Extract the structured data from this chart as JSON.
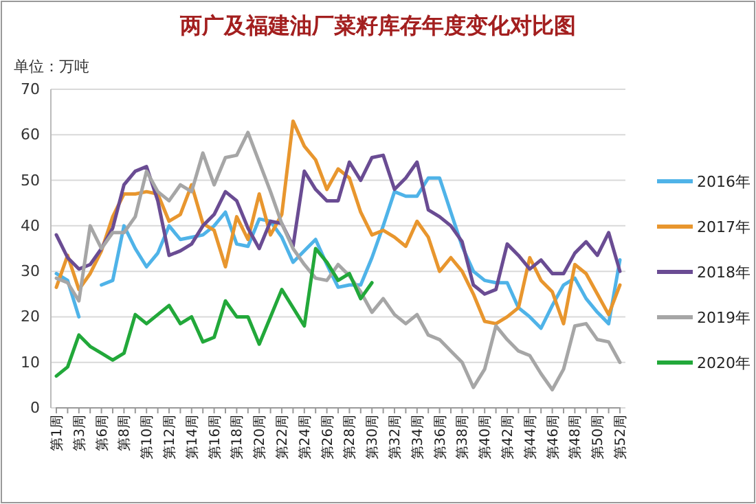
{
  "chart_data": {
    "type": "line",
    "title": "两广及福建油厂菜籽库存年度变化对比图",
    "ylabel": "单位：万吨",
    "categories": [
      "第1周",
      null,
      "第3周",
      null,
      "第6周",
      null,
      "第8周",
      null,
      "第10周",
      null,
      "第12周",
      null,
      "第14周",
      null,
      "第16周",
      null,
      "第18周",
      null,
      "第20周",
      null,
      "第22周",
      null,
      "第24周",
      null,
      "第26周",
      null,
      "第28周",
      null,
      "第30周",
      null,
      "第32周",
      null,
      "第34周",
      null,
      "第36周",
      null,
      "第38周",
      null,
      "第40周",
      null,
      "第42周",
      null,
      "第44周",
      null,
      "第46周",
      null,
      "第48周",
      null,
      "第50周",
      null,
      "第52周"
    ],
    "series": [
      {
        "name": "2016年",
        "color": "#4fb3e8",
        "values": [
          29.5,
          28,
          20,
          null,
          27,
          28,
          40,
          35,
          31,
          34,
          40,
          37,
          37.5,
          38,
          40,
          43,
          36,
          35.5,
          41.5,
          41,
          37.5,
          32,
          34.5,
          37,
          31.5,
          26.5,
          27,
          27,
          33,
          40,
          47.5,
          46.5,
          46.5,
          50.5,
          50.5,
          43,
          35.5,
          30,
          28,
          27.5,
          27.5,
          22,
          20,
          17.5,
          22.5,
          27,
          28.5,
          24,
          21,
          18.5,
          32.5
        ]
      },
      {
        "name": "2017年",
        "color": "#e8962e",
        "values": [
          26.5,
          33.5,
          26,
          29.5,
          34.5,
          42,
          47,
          47,
          47.5,
          47,
          41,
          42.5,
          49,
          40.5,
          39,
          31,
          42,
          37,
          47,
          38,
          42.5,
          63,
          57.5,
          54.5,
          48,
          52.5,
          50.5,
          43,
          38,
          39,
          37.5,
          35.5,
          41,
          37.5,
          30,
          33,
          30,
          25,
          19,
          18.5,
          20,
          22,
          33,
          28,
          25.5,
          18.5,
          31.5,
          29.5,
          25,
          20.5,
          27
        ]
      },
      {
        "name": "2018年",
        "color": "#6a4c93",
        "values": [
          38,
          33,
          30.5,
          31.5,
          35,
          39.5,
          49,
          52,
          53,
          45.5,
          33.5,
          34.5,
          36,
          40,
          42.5,
          47.5,
          45.5,
          39.5,
          35,
          41,
          40.5,
          35.5,
          52,
          48,
          45.5,
          45.5,
          54,
          50,
          55,
          55.5,
          48,
          50.5,
          54,
          43.5,
          42,
          40,
          36.5,
          27,
          25,
          26,
          36,
          33.5,
          30.5,
          32.5,
          29.5,
          29.5,
          34,
          36.5,
          33.5,
          38.5,
          30
        ]
      },
      {
        "name": "2019年",
        "color": "#a6a6a6",
        "values": [
          28.5,
          27.5,
          23.5,
          40,
          35,
          38.5,
          38.5,
          42,
          52,
          47.5,
          45.5,
          49,
          47.5,
          56,
          49,
          55,
          55.5,
          60.5,
          54,
          47.5,
          40.5,
          35,
          31.5,
          28.5,
          28,
          31.5,
          29,
          25.5,
          21,
          24,
          20.5,
          18.5,
          20.5,
          16,
          15,
          12.5,
          10,
          4.5,
          8.5,
          18,
          15,
          12.5,
          11.5,
          7.5,
          4,
          8.5,
          18,
          18.5,
          15,
          14.5,
          10
        ]
      },
      {
        "name": "2020年",
        "color": "#22a83a",
        "values": [
          7,
          9,
          16,
          13.5,
          12,
          10.5,
          12,
          20.5,
          18.5,
          20.5,
          22.5,
          18.5,
          20,
          14.5,
          15.5,
          23.5,
          20,
          20,
          14,
          20,
          26,
          22,
          18,
          35,
          32,
          28,
          29.5,
          24,
          27.5,
          null,
          null,
          null,
          null,
          null,
          null,
          null,
          null,
          null,
          null,
          null,
          null,
          null,
          null,
          null,
          null,
          null,
          null,
          null,
          null,
          null,
          null
        ]
      }
    ],
    "ylim": [
      0,
      70
    ],
    "yticks": [
      0,
      10,
      20,
      30,
      40,
      50,
      60,
      70
    ],
    "grid": "y",
    "legend": "right",
    "marker": "none",
    "line_style": "solid"
  }
}
